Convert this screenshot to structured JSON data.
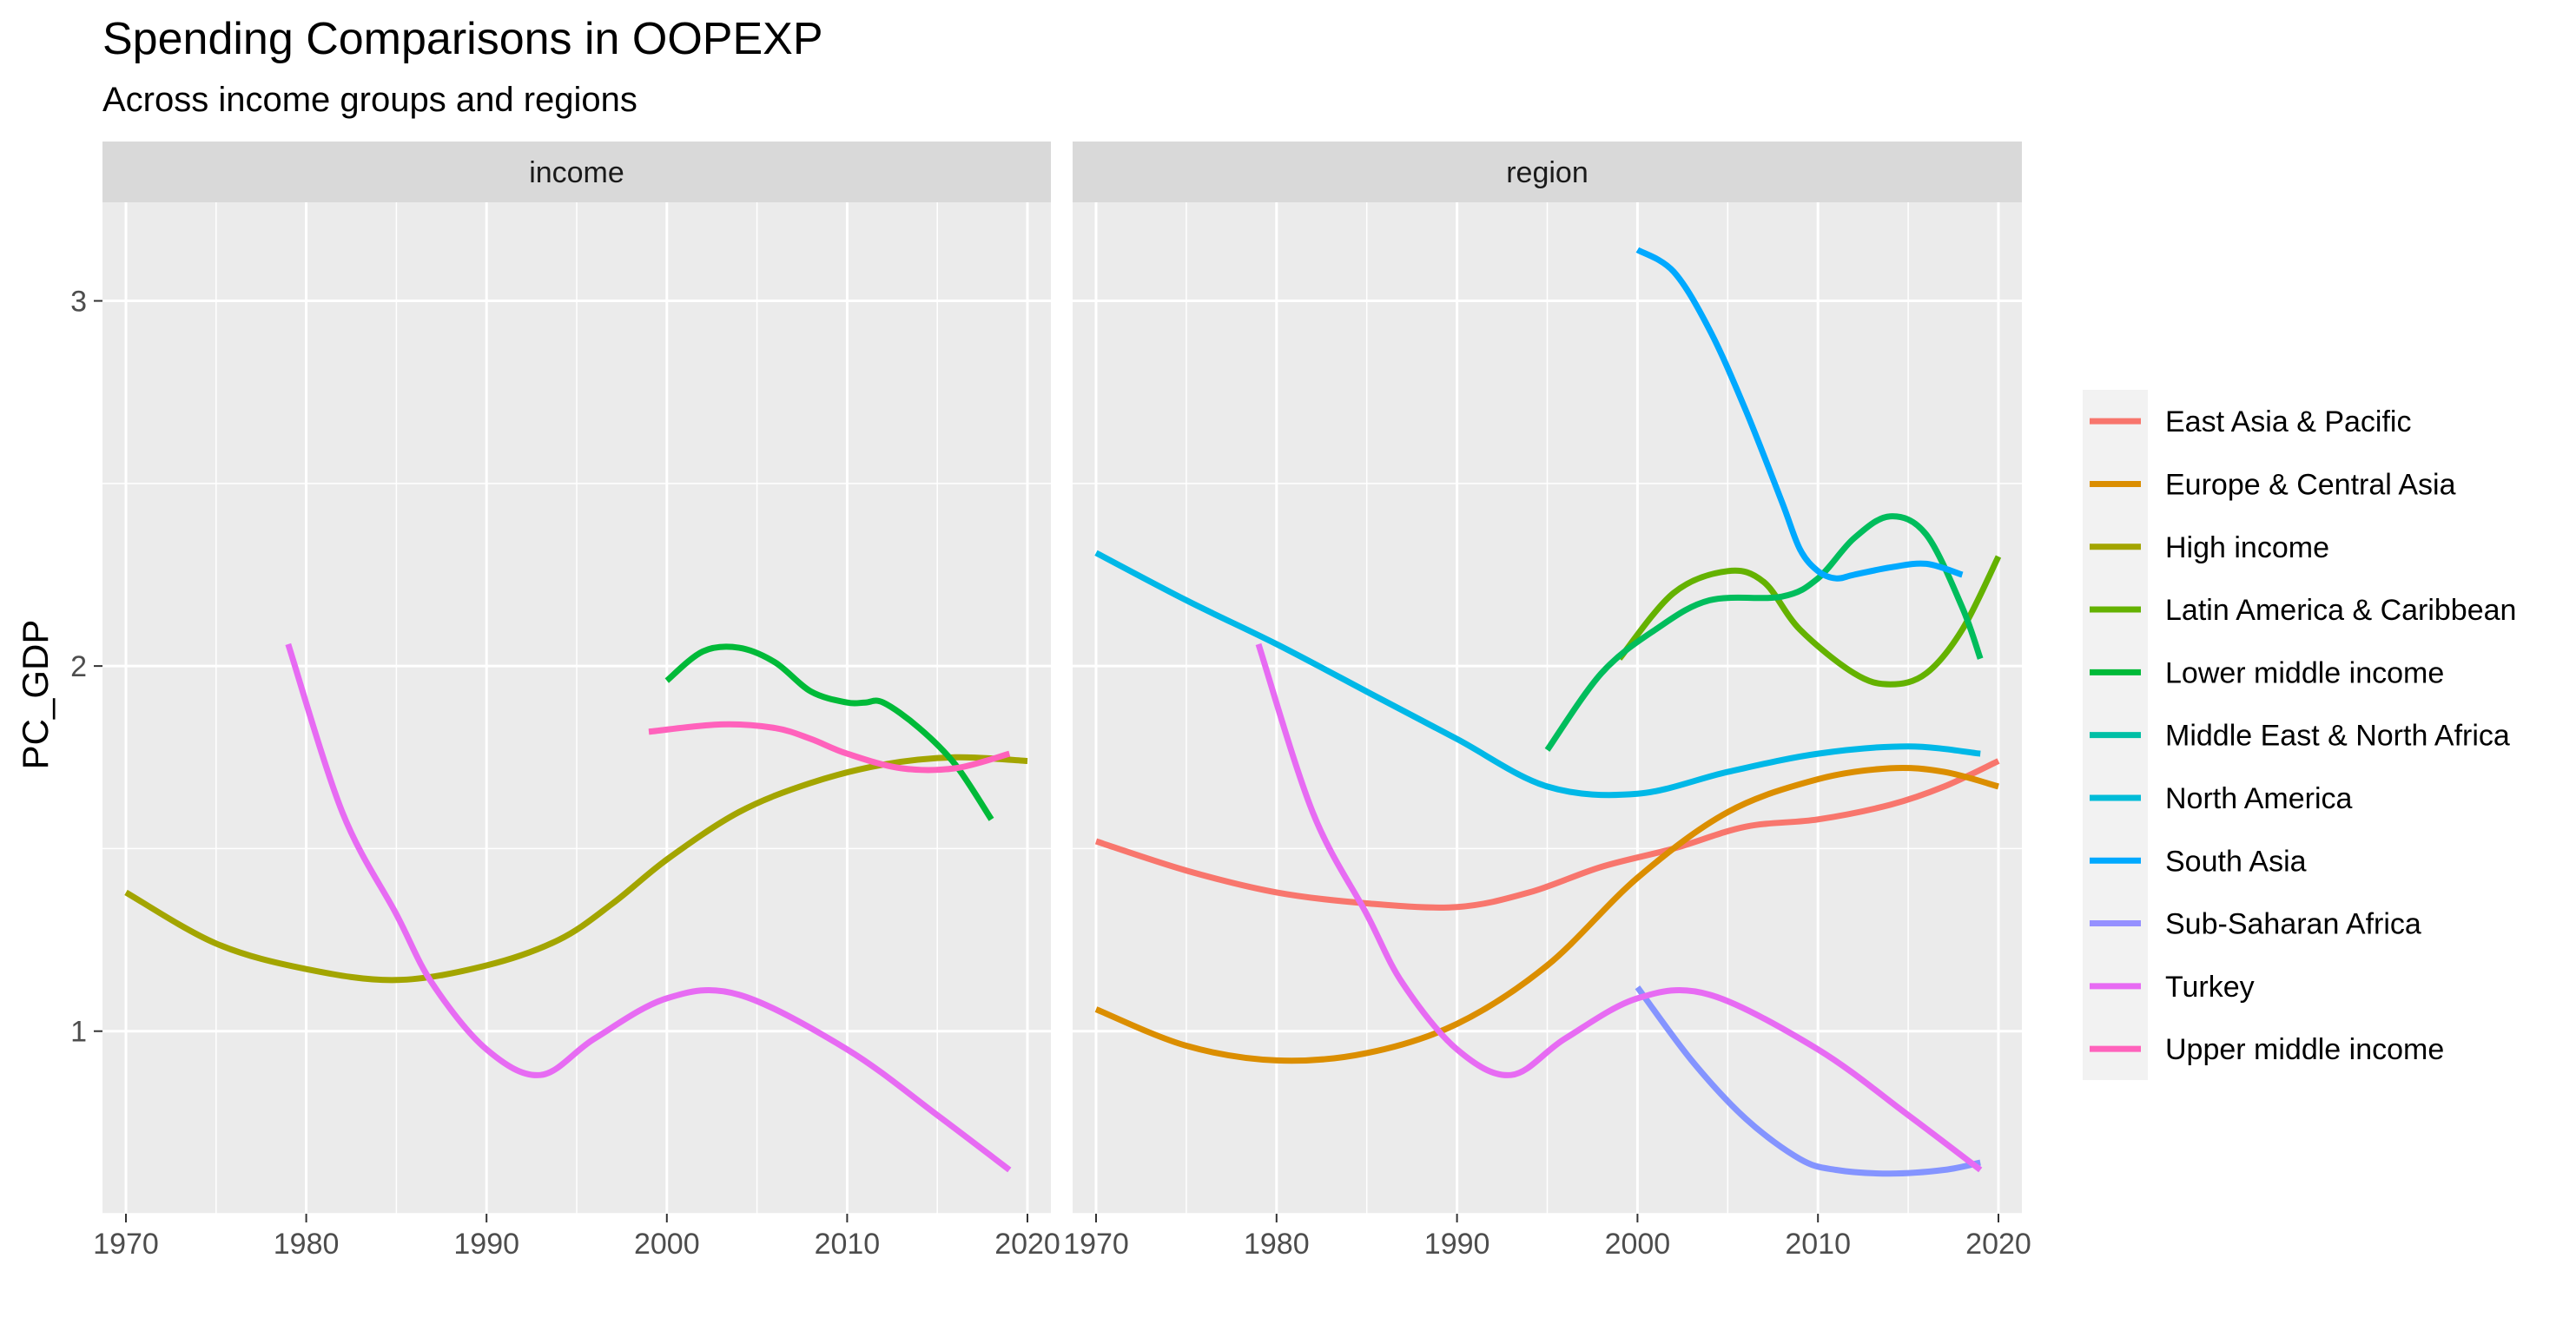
{
  "chart_data": {
    "type": "line",
    "title": "Spending Comparisons in OOPEXP",
    "subtitle": "Across income groups and regions",
    "xlabel": "",
    "ylabel": "PC_GDP",
    "xlim": [
      1968.7,
      2021.3
    ],
    "ylim": [
      0.5,
      3.27
    ],
    "x_ticks": [
      1970,
      1980,
      1990,
      2000,
      2010,
      2020
    ],
    "y_ticks": [
      1,
      2,
      3
    ],
    "grid": true,
    "legend_position": "right",
    "facets": [
      {
        "label": "income",
        "series": [
          {
            "name": "High income",
            "color": "#A3A500",
            "x": [
              1970,
              1975,
              1980,
              1985,
              1990,
              1994,
              1997,
              2000,
              2004,
              2008,
              2012,
              2016,
              2020
            ],
            "y": [
              1.38,
              1.24,
              1.17,
              1.14,
              1.18,
              1.25,
              1.35,
              1.47,
              1.6,
              1.68,
              1.73,
              1.75,
              1.74
            ]
          },
          {
            "name": "Lower middle income",
            "color": "#00BA38",
            "x": [
              2000,
              2002,
              2004,
              2006,
              2008,
              2010,
              2011,
              2012,
              2014,
              2016,
              2018
            ],
            "y": [
              1.96,
              2.04,
              2.05,
              2.01,
              1.93,
              1.9,
              1.9,
              1.9,
              1.83,
              1.73,
              1.58
            ]
          },
          {
            "name": "Turkey",
            "color": "#E76BF3",
            "x": [
              1979,
              1982,
              1985,
              1987,
              1990,
              1993,
              1996,
              2000,
              2004,
              2010,
              2015,
              2019
            ],
            "y": [
              2.06,
              1.6,
              1.32,
              1.13,
              0.95,
              0.88,
              0.98,
              1.09,
              1.1,
              0.95,
              0.77,
              0.62
            ]
          },
          {
            "name": "Upper middle income",
            "color": "#FF62BC",
            "x": [
              1999,
              2003,
              2006,
              2008,
              2010,
              2013,
              2016,
              2019
            ],
            "y": [
              1.82,
              1.84,
              1.83,
              1.8,
              1.76,
              1.72,
              1.72,
              1.76
            ]
          }
        ]
      },
      {
        "label": "region",
        "series": [
          {
            "name": "East Asia & Pacific",
            "color": "#F8766D",
            "x": [
              1970,
              1975,
              1980,
              1985,
              1990,
              1994,
              1998,
              2002,
              2006,
              2010,
              2014,
              2017,
              2020
            ],
            "y": [
              1.52,
              1.44,
              1.38,
              1.35,
              1.34,
              1.38,
              1.45,
              1.5,
              1.56,
              1.58,
              1.62,
              1.67,
              1.74
            ]
          },
          {
            "name": "Europe & Central Asia",
            "color": "#DB8E00",
            "x": [
              1970,
              1975,
              1980,
              1985,
              1990,
              1995,
              2000,
              2005,
              2010,
              2014,
              2017,
              2020
            ],
            "y": [
              1.06,
              0.96,
              0.92,
              0.94,
              1.02,
              1.18,
              1.42,
              1.6,
              1.69,
              1.72,
              1.71,
              1.67
            ]
          },
          {
            "name": "Latin America & Caribbean",
            "color": "#64B200",
            "x": [
              1999,
              2002,
              2005,
              2007,
              2009,
              2012,
              2014,
              2016,
              2018,
              2020
            ],
            "y": [
              2.02,
              2.2,
              2.26,
              2.23,
              2.1,
              1.98,
              1.95,
              1.98,
              2.1,
              2.3
            ]
          },
          {
            "name": "Middle East & North Africa",
            "color": "#00BD5C",
            "x": [
              1995,
              1998,
              2001,
              2004,
              2008,
              2010,
              2012,
              2014,
              2016,
              2018,
              2019
            ],
            "y": [
              1.77,
              1.98,
              2.1,
              2.18,
              2.19,
              2.24,
              2.35,
              2.41,
              2.36,
              2.16,
              2.02
            ]
          },
          {
            "name": "North America",
            "color": "#00B8E7",
            "x": [
              1970,
              1975,
              1980,
              1985,
              1990,
              1995,
              2000,
              2005,
              2010,
              2015,
              2019
            ],
            "y": [
              2.31,
              2.18,
              2.06,
              1.93,
              1.8,
              1.67,
              1.65,
              1.71,
              1.76,
              1.78,
              1.76
            ]
          },
          {
            "name": "South Asia",
            "color": "#00A9FF",
            "x": [
              2000,
              2002,
              2004,
              2006,
              2008,
              2009,
              2010,
              2011,
              2012,
              2014,
              2016,
              2018
            ],
            "y": [
              3.14,
              3.08,
              2.92,
              2.7,
              2.45,
              2.32,
              2.26,
              2.24,
              2.25,
              2.27,
              2.28,
              2.25
            ]
          },
          {
            "name": "Sub-Saharan Africa",
            "color": "#8494FF",
            "x": [
              2000,
              2003,
              2006,
              2009,
              2011,
              2014,
              2017,
              2019
            ],
            "y": [
              1.12,
              0.92,
              0.76,
              0.65,
              0.62,
              0.61,
              0.62,
              0.64
            ]
          },
          {
            "name": "Turkey",
            "color": "#E76BF3",
            "x": [
              1979,
              1982,
              1985,
              1987,
              1990,
              1993,
              1996,
              2000,
              2004,
              2010,
              2015,
              2019
            ],
            "y": [
              2.06,
              1.6,
              1.32,
              1.13,
              0.95,
              0.88,
              0.98,
              1.09,
              1.1,
              0.95,
              0.77,
              0.62
            ]
          }
        ]
      }
    ],
    "legend": [
      {
        "name": "East Asia & Pacific",
        "color": "#F8766D"
      },
      {
        "name": "Europe & Central Asia",
        "color": "#DB8E00"
      },
      {
        "name": "High income",
        "color": "#A3A500"
      },
      {
        "name": "Latin America & Caribbean",
        "color": "#64B200"
      },
      {
        "name": "Lower middle income",
        "color": "#00BA38"
      },
      {
        "name": "Middle East & North Africa",
        "color": "#00BFA5"
      },
      {
        "name": "North America",
        "color": "#00BCD8"
      },
      {
        "name": "South Asia",
        "color": "#00A9FF"
      },
      {
        "name": "Sub-Saharan Africa",
        "color": "#9590FF"
      },
      {
        "name": "Turkey",
        "color": "#E76BF3"
      },
      {
        "name": "Upper middle income",
        "color": "#FF62BC"
      }
    ]
  }
}
